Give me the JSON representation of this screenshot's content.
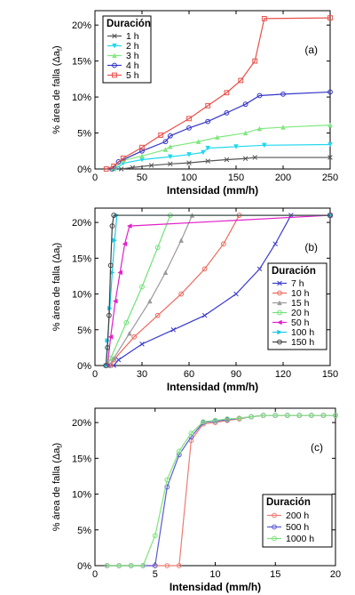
{
  "chart_data": [
    {
      "type": "line",
      "panel_label": "(a)",
      "xlabel": "Intensidad (mm/h)",
      "ylabel": "% área de falla (Δa",
      "ylabel_sub": "f",
      "ylabel_end": ")",
      "xlim": [
        0,
        250
      ],
      "ylim": [
        0,
        22
      ],
      "xticks": [
        0,
        50,
        100,
        150,
        200,
        250
      ],
      "yticks": [
        0,
        5,
        10,
        15,
        20
      ],
      "yticklabels": [
        "0%",
        "5%",
        "10%",
        "15%",
        "20%"
      ],
      "legend_title": "Duración",
      "legend_position": "top-left",
      "series": [
        {
          "name": "1 h",
          "color": "#555555",
          "marker": "x",
          "points": [
            [
              28,
              0
            ],
            [
              40,
              0.2
            ],
            [
              60,
              0.5
            ],
            [
              80,
              0.7
            ],
            [
              100,
              0.85
            ],
            [
              120,
              1.1
            ],
            [
              140,
              1.3
            ],
            [
              160,
              1.45
            ],
            [
              170,
              1.6
            ],
            [
              250,
              1.6
            ]
          ]
        },
        {
          "name": "2 h",
          "color": "#1fd8ee",
          "marker": "triangle-down",
          "points": [
            [
              22,
              0
            ],
            [
              30,
              0.8
            ],
            [
              50,
              1.3
            ],
            [
              80,
              1.7
            ],
            [
              100,
              2.0
            ],
            [
              115,
              2.3
            ],
            [
              120,
              2.9
            ],
            [
              150,
              3.1
            ],
            [
              180,
              3.3
            ],
            [
              250,
              3.4
            ]
          ]
        },
        {
          "name": "3 h",
          "color": "#7fe87f",
          "marker": "triangle-up",
          "points": [
            [
              20,
              0
            ],
            [
              30,
              1.2
            ],
            [
              50,
              1.8
            ],
            [
              75,
              2.7
            ],
            [
              80,
              3.1
            ],
            [
              110,
              3.8
            ],
            [
              130,
              4.4
            ],
            [
              160,
              5.0
            ],
            [
              175,
              5.6
            ],
            [
              200,
              5.8
            ],
            [
              250,
              6.1
            ]
          ]
        },
        {
          "name": "4 h",
          "color": "#3434c8",
          "marker": "circle",
          "points": [
            [
              18,
              0
            ],
            [
              25,
              1.0
            ],
            [
              50,
              2.5
            ],
            [
              75,
              3.8
            ],
            [
              80,
              4.6
            ],
            [
              100,
              5.7
            ],
            [
              120,
              6.6
            ],
            [
              140,
              7.8
            ],
            [
              160,
              9.0
            ],
            [
              175,
              10.2
            ],
            [
              200,
              10.4
            ],
            [
              250,
              10.7
            ]
          ]
        },
        {
          "name": "5 h",
          "color": "#e8504a",
          "marker": "square",
          "points": [
            [
              12,
              0
            ],
            [
              20,
              0.4
            ],
            [
              30,
              1.5
            ],
            [
              50,
              3.0
            ],
            [
              70,
              4.7
            ],
            [
              100,
              7.0
            ],
            [
              120,
              8.8
            ],
            [
              140,
              10.6
            ],
            [
              155,
              12.3
            ],
            [
              170,
              15.0
            ],
            [
              180,
              20.9
            ],
            [
              250,
              21.0
            ]
          ]
        }
      ]
    },
    {
      "type": "line",
      "panel_label": "(b)",
      "xlabel": "Intensidad (mm/h)",
      "ylabel": "% área de falla (Δa",
      "ylabel_sub": "f",
      "ylabel_end": ")",
      "xlim": [
        0,
        150
      ],
      "ylim": [
        0,
        22
      ],
      "xticks": [
        0,
        30,
        60,
        90,
        120,
        150
      ],
      "yticks": [
        0,
        5,
        10,
        15,
        20
      ],
      "yticklabels": [
        "0%",
        "5%",
        "10%",
        "15%",
        "20%"
      ],
      "legend_title": "Duración",
      "legend_position": "bottom-right",
      "series": [
        {
          "name": "7 h",
          "color": "#3a3acb",
          "marker": "x",
          "points": [
            [
              12,
              0
            ],
            [
              15,
              0.8
            ],
            [
              30,
              3.0
            ],
            [
              50,
              5.0
            ],
            [
              70,
              7.0
            ],
            [
              90,
              10.0
            ],
            [
              105,
              13.5
            ],
            [
              115,
              17.0
            ],
            [
              125,
              21.0
            ],
            [
              150,
              21.0
            ]
          ]
        },
        {
          "name": "10 h",
          "color": "#ec6a5e",
          "marker": "circle",
          "points": [
            [
              10,
              0
            ],
            [
              12,
              0.8
            ],
            [
              25,
              4.0
            ],
            [
              40,
              7.0
            ],
            [
              55,
              10.0
            ],
            [
              70,
              13.5
            ],
            [
              82,
              17.0
            ],
            [
              92,
              21.0
            ],
            [
              150,
              21.0
            ]
          ]
        },
        {
          "name": "15 h",
          "color": "#9a9a9a",
          "marker": "triangle-up",
          "points": [
            [
              9,
              0
            ],
            [
              12,
              1.0
            ],
            [
              22,
              4.5
            ],
            [
              35,
              9.0
            ],
            [
              45,
              13.0
            ],
            [
              55,
              17.5
            ],
            [
              62,
              21.0
            ],
            [
              150,
              21.0
            ]
          ]
        },
        {
          "name": "20 h",
          "color": "#72e27a",
          "marker": "circle",
          "points": [
            [
              8,
              0
            ],
            [
              10,
              1.0
            ],
            [
              20,
              6.0
            ],
            [
              30,
              11.0
            ],
            [
              40,
              16.5
            ],
            [
              48,
              21.0
            ],
            [
              150,
              21.0
            ]
          ]
        },
        {
          "name": "50 h",
          "color": "#e020c8",
          "marker": "triangle-left",
          "points": [
            [
              8,
              0
            ],
            [
              10,
              4.0
            ],
            [
              13,
              9.0
            ],
            [
              16,
              13.0
            ],
            [
              19,
              17.0
            ],
            [
              22,
              19.5
            ],
            [
              150,
              21.0
            ]
          ]
        },
        {
          "name": "100 h",
          "color": "#19c8e6",
          "marker": "triangle-right",
          "points": [
            [
              7,
              0
            ],
            [
              8,
              3.5
            ],
            [
              9.5,
              8.0
            ],
            [
              11,
              13.0
            ],
            [
              12.5,
              17.5
            ],
            [
              14,
              21.0
            ],
            [
              150,
              21.0
            ]
          ]
        },
        {
          "name": "150 h",
          "color": "#404040",
          "marker": "circle",
          "points": [
            [
              7,
              0
            ],
            [
              8,
              2.5
            ],
            [
              9,
              7.0
            ],
            [
              10,
              14.0
            ],
            [
              11,
              19.5
            ],
            [
              12,
              21.0
            ],
            [
              150,
              21.0
            ]
          ]
        }
      ]
    },
    {
      "type": "line",
      "panel_label": "(c)",
      "xlabel": "Intensidad (mm/h)",
      "ylabel": "% área de falla (Δa",
      "ylabel_sub": "f",
      "ylabel_end": ")",
      "xlim": [
        0,
        20
      ],
      "ylim": [
        0,
        22
      ],
      "xticks": [
        0,
        5,
        10,
        15,
        20
      ],
      "yticks": [
        0,
        5,
        10,
        15,
        20
      ],
      "yticklabels": [
        "0%",
        "5%",
        "10%",
        "15%",
        "20%"
      ],
      "legend_title": "Duración",
      "legend_position": "bottom-right",
      "series": [
        {
          "name": "200 h",
          "color": "#ee7b74",
          "marker": "circle",
          "points": [
            [
              1,
              0
            ],
            [
              2,
              0
            ],
            [
              3,
              0
            ],
            [
              4,
              0
            ],
            [
              5,
              0
            ],
            [
              6,
              0
            ],
            [
              7,
              0
            ],
            [
              8,
              17.5
            ],
            [
              9,
              19.8
            ],
            [
              10,
              20.0
            ],
            [
              11,
              20.3
            ],
            [
              12,
              20.5
            ],
            [
              13,
              20.8
            ],
            [
              14,
              21.0
            ],
            [
              15,
              21.0
            ],
            [
              16,
              21.0
            ],
            [
              17,
              21.0
            ],
            [
              18,
              21.0
            ],
            [
              19,
              21.0
            ],
            [
              20,
              21.0
            ]
          ]
        },
        {
          "name": "500 h",
          "color": "#5b5bd6",
          "marker": "circle",
          "points": [
            [
              1,
              0
            ],
            [
              2,
              0
            ],
            [
              3,
              0
            ],
            [
              4,
              0
            ],
            [
              5,
              0
            ],
            [
              6,
              11.0
            ],
            [
              7,
              15.5
            ],
            [
              8,
              18.0
            ],
            [
              9,
              20.0
            ],
            [
              10,
              20.2
            ],
            [
              11,
              20.4
            ],
            [
              12,
              20.6
            ],
            [
              13,
              20.8
            ],
            [
              14,
              21.0
            ],
            [
              15,
              21.0
            ],
            [
              16,
              21.0
            ],
            [
              17,
              21.0
            ],
            [
              18,
              21.0
            ],
            [
              19,
              21.0
            ],
            [
              20,
              21.0
            ]
          ]
        },
        {
          "name": "1000 h",
          "color": "#7fe27d",
          "marker": "circle",
          "points": [
            [
              1,
              0
            ],
            [
              2,
              0
            ],
            [
              3,
              0
            ],
            [
              4,
              0
            ],
            [
              5,
              4.2
            ],
            [
              6,
              12.0
            ],
            [
              7,
              16.0
            ],
            [
              8,
              18.5
            ],
            [
              9,
              20.1
            ],
            [
              10,
              20.3
            ],
            [
              11,
              20.5
            ],
            [
              12,
              20.6
            ],
            [
              13,
              20.8
            ],
            [
              14,
              21.0
            ],
            [
              15,
              21.0
            ],
            [
              16,
              21.0
            ],
            [
              17,
              21.0
            ],
            [
              18,
              21.0
            ],
            [
              19,
              21.0
            ],
            [
              20,
              21.0
            ]
          ]
        }
      ]
    }
  ]
}
